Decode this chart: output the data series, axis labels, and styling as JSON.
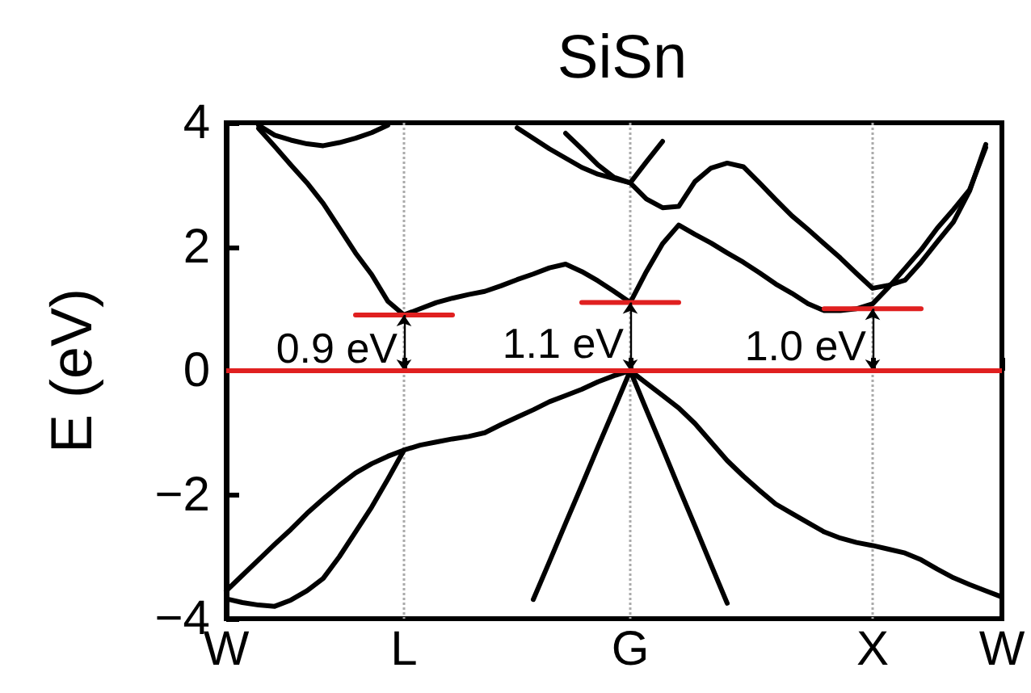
{
  "chart_data": {
    "type": "line",
    "title": "SiSn",
    "ylabel": "E (eV)",
    "categories": [
      "W",
      null,
      null,
      null,
      null,
      null,
      null,
      null,
      null,
      null,
      null,
      "L",
      null,
      null,
      null,
      null,
      null,
      null,
      null,
      null,
      null,
      null,
      null,
      null,
      null,
      "G",
      null,
      null,
      null,
      null,
      null,
      null,
      null,
      null,
      null,
      null,
      null,
      null,
      null,
      null,
      "X",
      null,
      null,
      null,
      null,
      null,
      null,
      null,
      "W"
    ],
    "ylim": [
      -4,
      4
    ],
    "yticks": [
      -4,
      -2,
      0,
      2,
      4
    ],
    "grid": "x",
    "marker": "none",
    "line_style": "solid",
    "series": [
      {
        "color": "#000000",
        "values": [
          -3.55,
          -3.3,
          -3.05,
          -2.8,
          -2.56,
          -2.3,
          -2.07,
          -1.85,
          -1.65,
          -1.5,
          -1.38,
          -1.28,
          -1.2,
          -1.15,
          -1.1,
          -1.06,
          -1.0,
          -0.87,
          -0.75,
          -0.63,
          -0.5,
          -0.4,
          -0.3,
          -0.18,
          -0.08,
          0,
          -0.2,
          -0.4,
          -0.6,
          -0.85,
          -1.15,
          -1.45,
          -1.7,
          -1.93,
          -2.15,
          -2.3,
          -2.45,
          -2.6,
          -2.7,
          -2.77,
          -2.82,
          -2.88,
          -2.94,
          -3.05,
          -3.2,
          -3.34,
          -3.45,
          -3.55,
          -3.65
        ]
      },
      {
        "color": "#000000",
        "values": [
          -3.68,
          -3.74,
          -3.78,
          -3.8,
          -3.7,
          -3.55,
          -3.35,
          -3.0,
          -2.6,
          -2.2,
          -1.75,
          -1.28,
          null,
          null,
          null,
          null,
          null,
          null,
          null,
          null,
          null,
          null,
          null,
          null,
          null,
          null,
          null,
          null,
          null,
          null,
          null,
          null,
          null,
          null,
          null,
          null,
          null,
          null,
          null,
          null,
          null,
          null,
          null,
          null,
          null,
          null,
          null,
          null,
          null
        ]
      },
      {
        "color": "#000000",
        "values": [
          null,
          null,
          null,
          null,
          null,
          null,
          null,
          null,
          null,
          null,
          null,
          null,
          null,
          null,
          null,
          null,
          null,
          null,
          null,
          -3.69,
          -3.08,
          -2.46,
          -1.85,
          -1.23,
          -0.62,
          0,
          -0.63,
          -1.25,
          -1.88,
          -2.5,
          -3.13,
          -3.75,
          null,
          null,
          null,
          null,
          null,
          null,
          null,
          null,
          null,
          null,
          null,
          null,
          null,
          null,
          null,
          null,
          null
        ]
      },
      {
        "color": "#000000",
        "values": [
          null,
          null,
          3.91,
          3.62,
          3.32,
          3.03,
          2.7,
          2.3,
          1.9,
          1.55,
          1.12,
          0.9,
          1.0,
          1.1,
          1.17,
          1.23,
          1.28,
          1.37,
          1.47,
          1.56,
          1.66,
          1.72,
          1.6,
          1.45,
          1.28,
          1.1,
          1.6,
          2.05,
          2.35,
          2.2,
          2.06,
          1.9,
          1.75,
          1.58,
          1.4,
          1.25,
          1.08,
          0.97,
          0.97,
          1.0,
          1.08,
          1.35,
          1.65,
          1.95,
          2.3,
          2.6,
          2.92,
          3.6,
          null
        ]
      },
      {
        "color": "#000000",
        "values": [
          null,
          null,
          3.96,
          3.8,
          3.72,
          3.66,
          3.63,
          3.68,
          3.75,
          3.84,
          3.96,
          null,
          null,
          null,
          null,
          null,
          null,
          null,
          null,
          null,
          null,
          null,
          null,
          null,
          null,
          null,
          null,
          null,
          null,
          null,
          null,
          null,
          null,
          null,
          null,
          null,
          null,
          null,
          null,
          null,
          null,
          null,
          null,
          null,
          null,
          null,
          null,
          null,
          null
        ]
      },
      {
        "color": "#000000",
        "values": [
          null,
          null,
          null,
          null,
          null,
          null,
          null,
          null,
          null,
          null,
          null,
          null,
          null,
          null,
          null,
          null,
          null,
          null,
          3.92,
          3.75,
          3.58,
          3.43,
          3.28,
          3.17,
          3.1,
          3.03,
          2.77,
          2.63,
          2.65,
          3.05,
          3.27,
          3.35,
          3.29,
          3.03,
          2.76,
          2.5,
          2.28,
          2.05,
          1.82,
          1.57,
          1.33,
          1.38,
          1.46,
          1.75,
          2.08,
          2.4,
          2.9,
          3.65,
          null
        ]
      },
      {
        "color": "#000000",
        "values": [
          null,
          null,
          null,
          null,
          null,
          null,
          null,
          null,
          null,
          null,
          null,
          null,
          null,
          null,
          null,
          null,
          null,
          null,
          null,
          null,
          null,
          3.83,
          3.58,
          3.32,
          3.12,
          3.03,
          3.37,
          3.7,
          null,
          null,
          null,
          null,
          null,
          null,
          null,
          null,
          null,
          null,
          null,
          null,
          null,
          null,
          null,
          null,
          null,
          null,
          null,
          null,
          null
        ]
      },
      {
        "color": "#e02020",
        "values": [
          null,
          null,
          null,
          null,
          null,
          null,
          null,
          null,
          0.9,
          0.9,
          0.9,
          0.9,
          0.9,
          0.9,
          0.9,
          null,
          null,
          null,
          null,
          null,
          null,
          null,
          null,
          null,
          null,
          null,
          null,
          null,
          null,
          null,
          null,
          null,
          null,
          null,
          null,
          null,
          null,
          null,
          null,
          null,
          null,
          null,
          null,
          null,
          null,
          null,
          null,
          null,
          null
        ]
      },
      {
        "color": "#e02020",
        "values": [
          null,
          null,
          null,
          null,
          null,
          null,
          null,
          null,
          null,
          null,
          null,
          null,
          null,
          null,
          null,
          null,
          null,
          null,
          null,
          null,
          null,
          null,
          1.1,
          1.1,
          1.1,
          1.1,
          1.1,
          1.1,
          1.1,
          null,
          null,
          null,
          null,
          null,
          null,
          null,
          null,
          null,
          null,
          null,
          null,
          null,
          null,
          null,
          null,
          null,
          null,
          null,
          null
        ]
      },
      {
        "color": "#e02020",
        "values": [
          null,
          null,
          null,
          null,
          null,
          null,
          null,
          null,
          null,
          null,
          null,
          null,
          null,
          null,
          null,
          null,
          null,
          null,
          null,
          null,
          null,
          null,
          null,
          null,
          null,
          null,
          null,
          null,
          null,
          null,
          null,
          null,
          null,
          null,
          null,
          null,
          null,
          1.0,
          1.0,
          1.0,
          1.0,
          1.0,
          1.0,
          1.0,
          null,
          null,
          null,
          null,
          null
        ]
      }
    ],
    "ref_lines": [
      {
        "axis": "y",
        "value": 0,
        "color": "#e02020"
      }
    ],
    "annotations": [
      "0.9 eV",
      "1.1 eV",
      "1.0 eV"
    ]
  }
}
